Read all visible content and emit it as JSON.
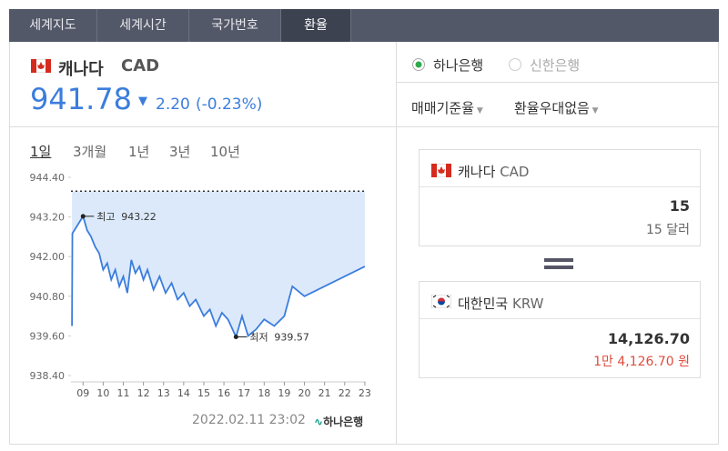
{
  "tabs": [
    "세계지도",
    "세계시간",
    "국가번호",
    "환율"
  ],
  "currency": {
    "name": "캐나다",
    "code": "CAD",
    "rate": "941.78",
    "change": "2.20",
    "change_pct": "(-0.23%)"
  },
  "periods": [
    "1일",
    "3개월",
    "1년",
    "3년",
    "10년"
  ],
  "chart": {
    "type": "line",
    "color": "#3b7ddd",
    "x": [
      8.45,
      8.47,
      9.0,
      9.2,
      9.4,
      9.6,
      9.8,
      10.0,
      10.2,
      10.4,
      10.6,
      10.8,
      11.0,
      11.2,
      11.4,
      11.6,
      11.8,
      12.0,
      12.2,
      12.5,
      12.8,
      13.1,
      13.4,
      13.7,
      14.0,
      14.3,
      14.6,
      15.0,
      15.3,
      15.6,
      15.9,
      16.2,
      16.6,
      16.9,
      17.2,
      17.6,
      18.0,
      18.5,
      19.0,
      19.4,
      20.0,
      23.0
    ],
    "values": [
      939.9,
      942.7,
      943.22,
      942.8,
      942.6,
      942.3,
      942.1,
      941.6,
      941.8,
      941.3,
      941.6,
      941.1,
      941.4,
      940.9,
      941.9,
      941.5,
      941.7,
      941.3,
      941.6,
      941.0,
      941.4,
      940.9,
      941.2,
      940.7,
      940.9,
      940.5,
      940.7,
      940.2,
      940.4,
      939.9,
      940.3,
      940.1,
      939.57,
      940.2,
      939.6,
      939.8,
      940.1,
      939.9,
      940.2,
      941.1,
      940.8,
      941.7
    ],
    "xlim": [
      8.4,
      23.05
    ],
    "ylim": [
      938.4,
      944.4
    ],
    "xticks": [
      {
        "value": 9,
        "label": "09"
      },
      10,
      11,
      12,
      13,
      14,
      15,
      16,
      17,
      18,
      19,
      20,
      21,
      22,
      23
    ],
    "yticks": [
      {
        "value": 944.4,
        "label": "944.40"
      },
      {
        "value": 943.2,
        "label": "943.20"
      },
      {
        "value": 942,
        "label": "942.00"
      },
      {
        "value": 940.8,
        "label": "940.80"
      },
      {
        "value": 939.6,
        "label": "939.60"
      },
      {
        "value": 938.4,
        "label": "938.40"
      }
    ],
    "reference": 943.98,
    "annotations": [
      {
        "label": "최고",
        "x": 9.0,
        "value": 943.22
      },
      {
        "label": "최저",
        "x": 16.6,
        "value": 939.57
      }
    ]
  },
  "timestamp": "2022.02.11 23:02",
  "source": "하나은행",
  "banks": [
    "하나은행",
    "신한은행"
  ],
  "dropdowns": [
    "매매기준율",
    "환율우대없음"
  ],
  "from": {
    "name": "캐나다",
    "code": "CAD",
    "amount": "15",
    "words": "15 달러"
  },
  "to": {
    "name": "대한민국",
    "code": "KRW",
    "amount": "14,126.70",
    "words": "1만 4,126.70 원"
  }
}
